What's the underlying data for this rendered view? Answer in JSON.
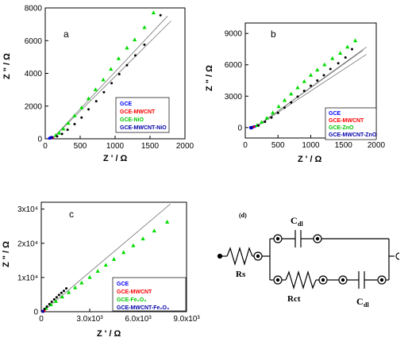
{
  "chart_data": [
    {
      "panel_label": "a",
      "type": "scatter",
      "xlabel": "Z ' / Ω",
      "ylabel": "Z \" / Ω",
      "xlim": [
        0,
        2000
      ],
      "ylim": [
        0,
        8000
      ],
      "xticks": [
        "0",
        "500",
        "1000",
        "1500",
        "2000"
      ],
      "yticks": [
        "0",
        "2000",
        "4000",
        "6000",
        "8000"
      ],
      "legend_position": "bottom-right",
      "series": [
        {
          "name": "GCE",
          "color": "#0000ff",
          "marker": "square",
          "x": [
            60,
            75,
            90
          ],
          "y": [
            30,
            60,
            90
          ]
        },
        {
          "name": "GCE-MWCNT",
          "color": "#ff0000",
          "marker": "circle",
          "x": [
            100,
            110
          ],
          "y": [
            40,
            70
          ]
        },
        {
          "name": "GCE-NiO",
          "color": "#00dd00",
          "marker": "triangle",
          "x": [
            150,
            200,
            260,
            330,
            420,
            520,
            620,
            720,
            830,
            940,
            1050,
            1170,
            1280,
            1420,
            1550
          ],
          "y": [
            200,
            350,
            600,
            950,
            1400,
            1900,
            2450,
            3000,
            3600,
            4250,
            4900,
            5550,
            6050,
            6800,
            7700
          ]
        },
        {
          "name": "GCE-MWCNT-NiO",
          "color": "#0000aa",
          "marker": "square",
          "x": [
            80,
            95
          ],
          "y": [
            50,
            90
          ]
        },
        {
          "name": "",
          "color": "#000000",
          "marker": "circle",
          "x": [
            170,
            240,
            320,
            420,
            520,
            620,
            730,
            840,
            950,
            1060,
            1170,
            1290,
            1420,
            1650
          ],
          "y": [
            150,
            300,
            550,
            900,
            1300,
            1800,
            2300,
            2850,
            3400,
            3950,
            4500,
            5100,
            5750,
            7550
          ]
        }
      ],
      "fit_lines": [
        {
          "x": [
            100,
            1800
          ],
          "y": [
            0,
            7200
          ]
        },
        {
          "x": [
            100,
            1750
          ],
          "y": [
            0,
            7500
          ]
        }
      ]
    },
    {
      "panel_label": "b",
      "type": "scatter",
      "xlabel": "Z ' / Ω",
      "ylabel": "Z \" / Ω",
      "xlim": [
        0,
        2000
      ],
      "ylim": [
        -1000,
        10000
      ],
      "xticks": [
        "0",
        "500",
        "1000",
        "1500",
        "2000"
      ],
      "yticks": [
        "0",
        "3000",
        "6000",
        "9000"
      ],
      "legend_position": "bottom-right",
      "series": [
        {
          "name": "GCE",
          "color": "#0000ff",
          "marker": "square",
          "x": [
            80,
            100,
            120,
            140
          ],
          "y": [
            0,
            0,
            50,
            100
          ]
        },
        {
          "name": "GCE-MWCNT",
          "color": "#ff0000",
          "marker": "circle",
          "x": [
            110,
            130
          ],
          "y": [
            30,
            80
          ]
        },
        {
          "name": "GCE-ZnO",
          "color": "#00dd00",
          "marker": "triangle",
          "x": [
            180,
            250,
            330,
            420,
            510,
            600,
            700,
            800,
            900,
            1000,
            1100,
            1210,
            1330,
            1450,
            1560,
            1680
          ],
          "y": [
            200,
            500,
            900,
            1400,
            2000,
            2600,
            3200,
            3800,
            4400,
            5000,
            5500,
            6000,
            6600,
            7100,
            7700,
            8300
          ]
        },
        {
          "name": "GCE-MWCNT-ZnO",
          "color": "#0000aa",
          "marker": "square",
          "x": [
            90,
            100
          ],
          "y": [
            -50,
            20
          ]
        },
        {
          "name": "",
          "color": "#000000",
          "marker": "circle",
          "x": [
            200,
            300,
            400,
            500,
            600,
            700,
            800,
            900,
            1000,
            1100,
            1200,
            1300,
            1420,
            1530,
            1630
          ],
          "y": [
            200,
            550,
            950,
            1400,
            1900,
            2400,
            2950,
            3500,
            4000,
            4500,
            5000,
            5600,
            6150,
            6700,
            7500
          ]
        }
      ],
      "fit_lines": [
        {
          "x": [
            150,
            1850
          ],
          "y": [
            0,
            7000
          ]
        },
        {
          "x": [
            150,
            1800
          ],
          "y": [
            0,
            7400
          ]
        },
        {
          "x": [
            150,
            1850
          ],
          "y": [
            0,
            7700
          ]
        }
      ]
    },
    {
      "panel_label": "c",
      "type": "scatter",
      "xlabel": "Z ' / Ω",
      "ylabel": "Z \" / Ω",
      "xlim": [
        0,
        9000
      ],
      "ylim": [
        0,
        32000
      ],
      "xticks": [
        "0",
        "3.0x10³",
        "6.0x10³",
        "9.0x10³"
      ],
      "yticks": [
        "0",
        "1x10⁴",
        "2x10⁴",
        "3x10⁴"
      ],
      "legend_position": "bottom-left",
      "series": [
        {
          "name": "GCE",
          "color": "#0000ff",
          "marker": "square",
          "x": [
            100,
            150
          ],
          "y": [
            100,
            200
          ]
        },
        {
          "name": "GCE-MWCNT",
          "color": "#ff0000",
          "marker": "circle",
          "x": [
            150,
            200
          ],
          "y": [
            150,
            300
          ]
        },
        {
          "name": "GCE-Fe₂O₃",
          "color": "#00dd00",
          "marker": "triangle",
          "x": [
            300,
            600,
            900,
            1300,
            1700,
            2100,
            2500,
            3000,
            3500,
            4000,
            4500,
            5100,
            5700,
            6300,
            7000,
            7800
          ],
          "y": [
            1000,
            2000,
            3000,
            4300,
            5600,
            7000,
            8400,
            10000,
            11800,
            13600,
            15300,
            17300,
            19300,
            21300,
            23600,
            26200
          ]
        },
        {
          "name": "GCE-MWCNT-Fe₂O₃",
          "color": "#0000aa",
          "marker": "square",
          "x": [
            100
          ],
          "y": [
            50
          ]
        },
        {
          "name": "",
          "color": "#000000",
          "marker": "circle",
          "x": [
            200,
            350,
            500,
            650,
            800,
            950,
            1100,
            1250,
            1400,
            1550
          ],
          "y": [
            800,
            1500,
            2200,
            2900,
            3600,
            4200,
            4900,
            5500,
            6100,
            6800
          ]
        }
      ],
      "fit_lines": [
        {
          "x": [
            100,
            8000
          ],
          "y": [
            0,
            31500
          ]
        }
      ]
    }
  ],
  "circuit": {
    "panel_label": "(d)",
    "labels": {
      "rs": "Rs",
      "rct": "Rct",
      "cdl_top": "C",
      "cdl_top_sub": "dl",
      "cdl_bottom": "C",
      "cdl_bottom_sub": "dl"
    }
  }
}
